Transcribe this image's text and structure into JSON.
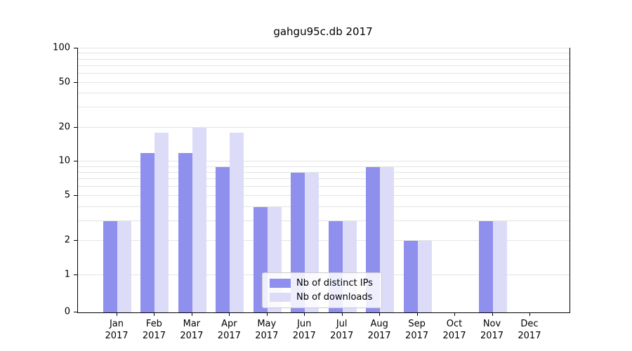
{
  "chart_data": {
    "type": "bar",
    "title": "gahgu95c.db 2017",
    "year": "2017",
    "categories": [
      "Jan",
      "Feb",
      "Mar",
      "Apr",
      "May",
      "Jun",
      "Jul",
      "Aug",
      "Sep",
      "Oct",
      "Nov",
      "Dec"
    ],
    "series": [
      {
        "name": "Nb of distinct IPs",
        "color": "#8f8fee",
        "values": [
          3,
          12,
          12,
          9,
          4,
          8,
          3,
          9,
          2,
          0,
          3,
          0
        ]
      },
      {
        "name": "Nb of downloads",
        "color": "#dcdcf8",
        "values": [
          3,
          18,
          20,
          18,
          4,
          8,
          3,
          9,
          2,
          0,
          3,
          0
        ]
      }
    ],
    "yscale": "log",
    "yticks": [
      0,
      1,
      2,
      5,
      10,
      20,
      50,
      100
    ],
    "ylim": [
      0,
      100
    ],
    "grid": true,
    "legend_position": "lower center",
    "xlabel": "",
    "ylabel": ""
  },
  "colors": {
    "grid": "#e4e4e4",
    "axis": "#000000",
    "background": "#ffffff"
  }
}
